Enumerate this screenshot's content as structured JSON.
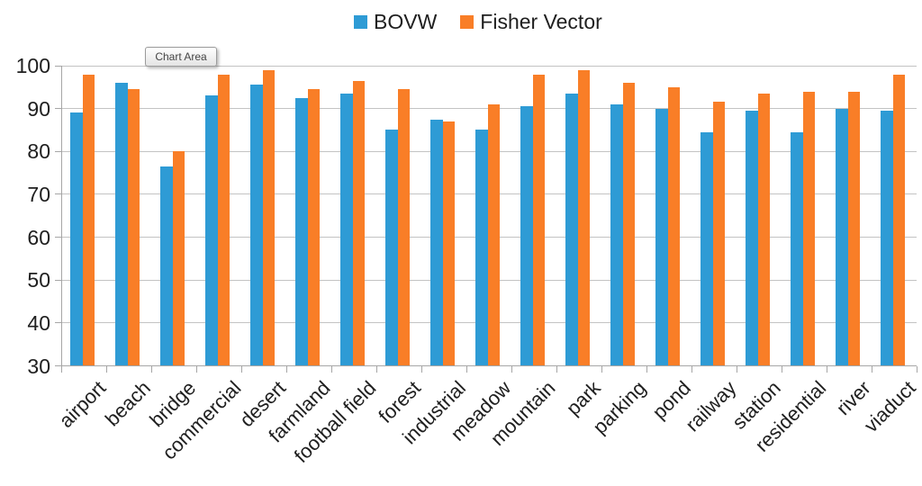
{
  "tooltip": {
    "label": "Chart Area"
  },
  "chart_data": {
    "type": "bar",
    "title": "",
    "xlabel": "",
    "ylabel": "",
    "categories": [
      "airport",
      "beach",
      "bridge",
      "commercial",
      "desert",
      "farmland",
      "football field",
      "forest",
      "industrial",
      "meadow",
      "mountain",
      "park",
      "parking",
      "pond",
      "railway",
      "station",
      "residential",
      "river",
      "viaduct"
    ],
    "series": [
      {
        "name": "BOVW",
        "color": "#2E9BD5",
        "values": [
          89,
          96,
          76.5,
          93,
          95.5,
          92.5,
          93.5,
          85,
          87.5,
          85,
          90.5,
          93.5,
          91,
          90,
          84.5,
          89.5,
          84.5,
          90,
          89.5
        ]
      },
      {
        "name": "Fisher Vector",
        "color": "#F97E27",
        "values": [
          98,
          94.5,
          80,
          98,
          99,
          94.5,
          96.5,
          94.5,
          87,
          91,
          98,
          99,
          96,
          95,
          91.5,
          93.5,
          94,
          94,
          98
        ]
      }
    ],
    "ylim": [
      30,
      100
    ],
    "yticks": [
      30,
      40,
      50,
      60,
      70,
      80,
      90,
      100
    ],
    "grid": true,
    "legend_position": "top"
  }
}
